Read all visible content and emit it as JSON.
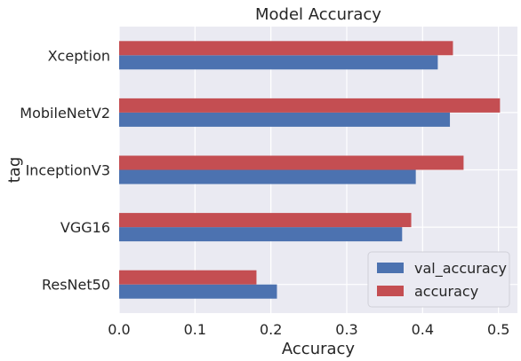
{
  "chart_data": {
    "type": "bar",
    "orientation": "horizontal",
    "title": "Model Accuracy",
    "xlabel": "Accuracy",
    "ylabel": "tag",
    "categories": [
      "ResNet50",
      "VGG16",
      "InceptionV3",
      "MobileNetV2",
      "Xception"
    ],
    "series": [
      {
        "name": "val_accuracy",
        "color": "#4c72b0",
        "values": [
          0.208,
          0.373,
          0.391,
          0.436,
          0.42
        ]
      },
      {
        "name": "accuracy",
        "color": "#c44e52",
        "values": [
          0.181,
          0.385,
          0.454,
          0.502,
          0.44
        ]
      }
    ],
    "xlim": [
      0,
      0.525
    ],
    "xticks": [
      "0.0",
      "0.1",
      "0.2",
      "0.3",
      "0.4",
      "0.5"
    ],
    "grid": true,
    "legend_position": "bottom-right",
    "background_color": "#eaeaf2"
  }
}
